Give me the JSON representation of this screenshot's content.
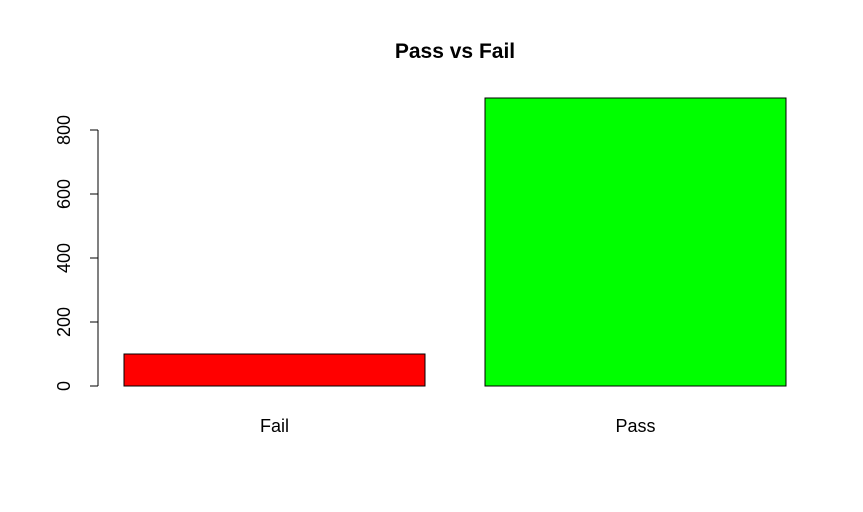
{
  "chart_data": {
    "type": "bar",
    "title": "Pass vs Fail",
    "categories": [
      "Fail",
      "Pass"
    ],
    "values": [
      100,
      900
    ],
    "colors": [
      "#FF0000",
      "#00FF00"
    ],
    "xlabel": "",
    "ylabel": "",
    "ylim": [
      0,
      900
    ],
    "yticks": [
      0,
      200,
      400,
      600,
      800
    ],
    "grid": false
  }
}
